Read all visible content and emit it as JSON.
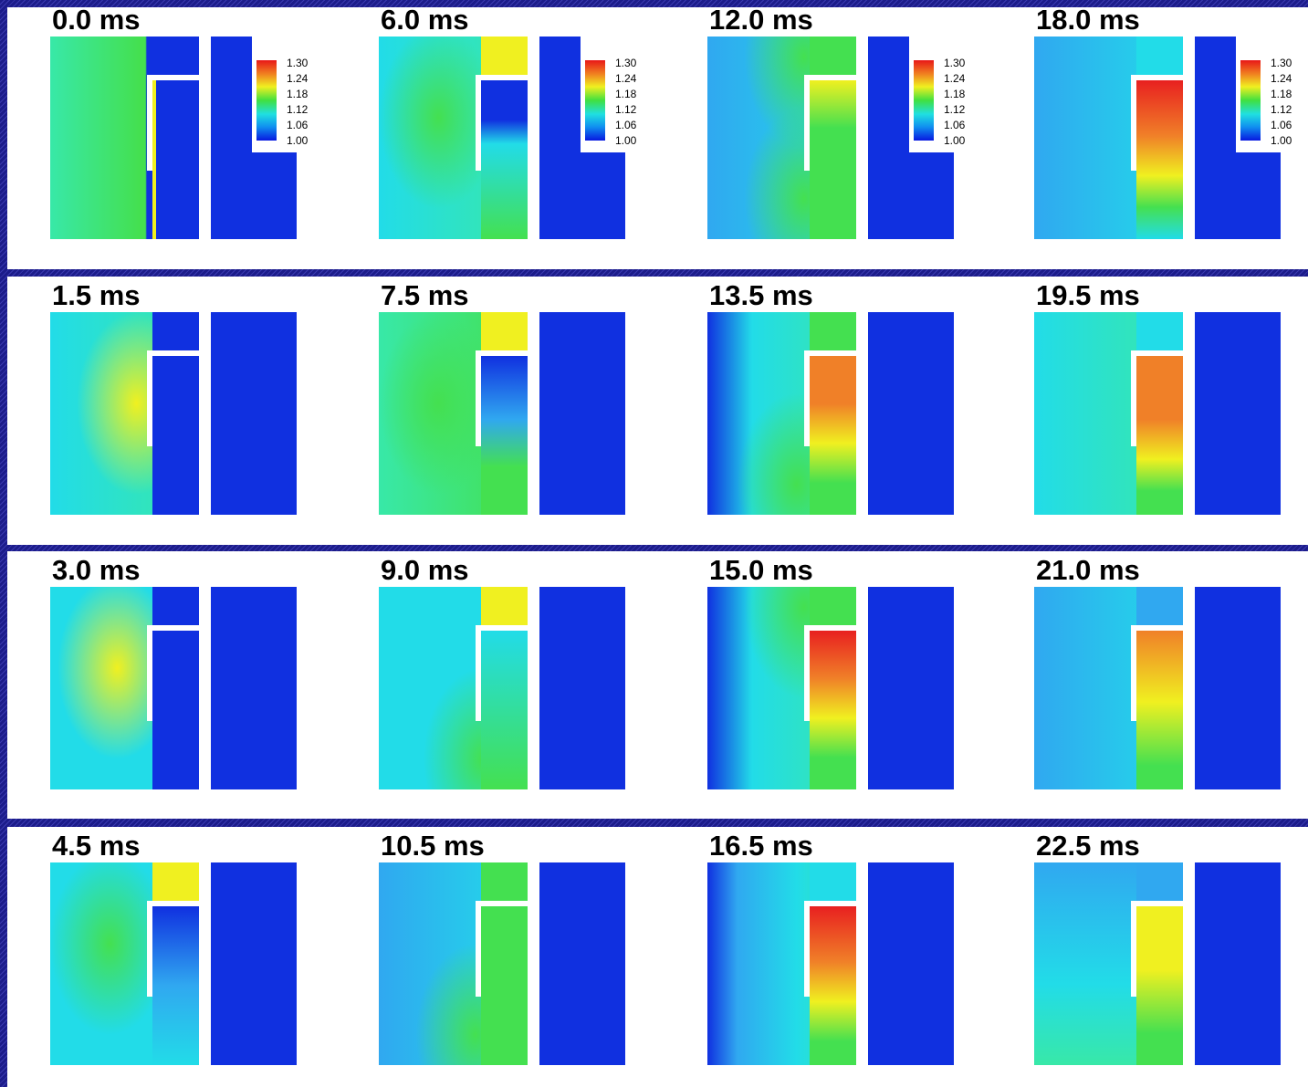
{
  "panels": [
    {
      "label": "0.0 ms"
    },
    {
      "label": "6.0 ms"
    },
    {
      "label": "12.0 ms"
    },
    {
      "label": "18.0 ms"
    },
    {
      "label": "1.5 ms"
    },
    {
      "label": "7.5 ms"
    },
    {
      "label": "13.5 ms"
    },
    {
      "label": "19.5 ms"
    },
    {
      "label": "3.0 ms"
    },
    {
      "label": "9.0 ms"
    },
    {
      "label": "15.0 ms"
    },
    {
      "label": "21.0 ms"
    },
    {
      "label": "4.5 ms"
    },
    {
      "label": "10.5 ms"
    },
    {
      "label": "16.5 ms"
    },
    {
      "label": "22.5 ms"
    }
  ],
  "colorbar": {
    "ticks": [
      "1.30",
      "1.24",
      "1.18",
      "1.12",
      "1.06",
      "1.00"
    ]
  }
}
